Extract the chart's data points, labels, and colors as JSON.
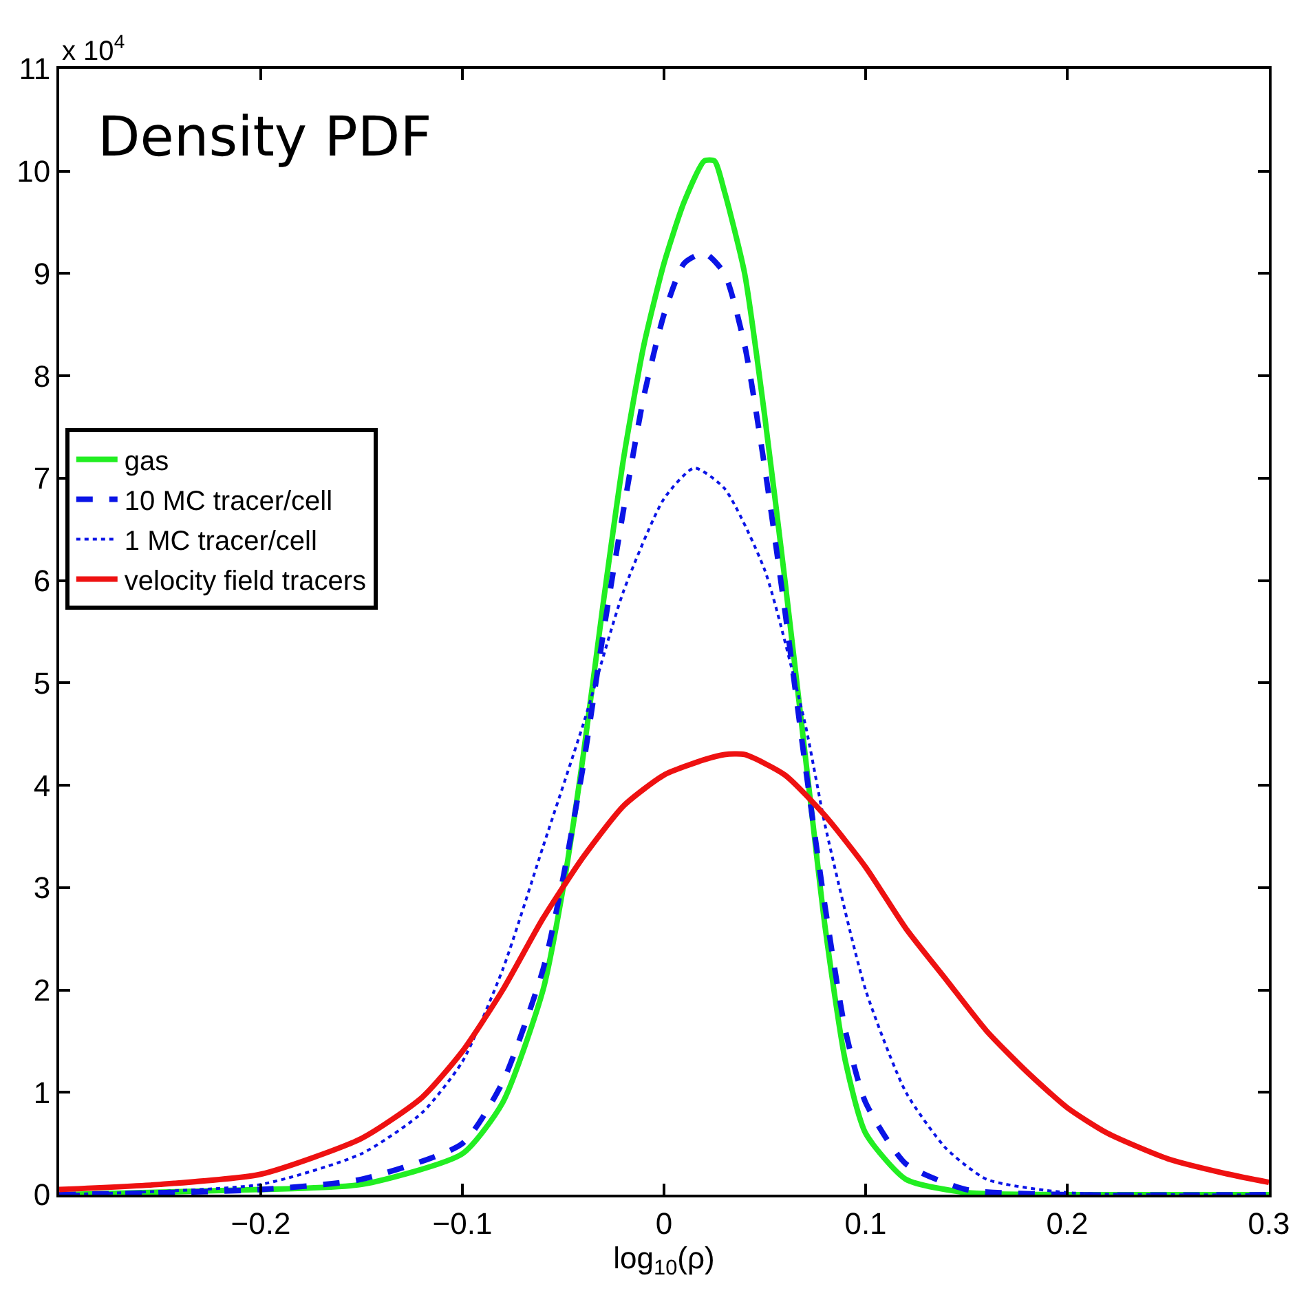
{
  "chart_data": {
    "type": "line",
    "title": "Density PDF",
    "xlabel": "log$_{10}$(ρ)",
    "annotations": [
      "x 10$^{4}$"
    ],
    "xlim": [
      -0.3,
      0.3
    ],
    "xticks": [
      {
        "value": -0.2,
        "label": "−0.2"
      },
      {
        "value": -0.1,
        "label": "−0.1"
      },
      0,
      0.1,
      0.2,
      0.3
    ],
    "ylim": [
      0,
      11
    ],
    "yticks": [
      0,
      1,
      2,
      3,
      4,
      5,
      6,
      7,
      8,
      9,
      10,
      11
    ],
    "legend": "left",
    "marker": "none",
    "series": [
      {
        "name": "gas",
        "color": "#22ee22",
        "line_style": "solid",
        "x": [
          -0.3,
          -0.2,
          -0.15,
          -0.1,
          -0.08,
          -0.06,
          -0.05,
          -0.04,
          -0.03,
          -0.02,
          -0.01,
          0,
          0.01,
          0.02,
          0.025,
          0.03,
          0.04,
          0.05,
          0.06,
          0.07,
          0.08,
          0.09,
          0.1,
          0.12,
          0.15,
          0.2,
          0.3
        ],
        "values": [
          0,
          0.05,
          0.1,
          0.4,
          0.9,
          2.0,
          3.0,
          4.3,
          5.8,
          7.2,
          8.3,
          9.1,
          9.7,
          10.1,
          10.1,
          9.8,
          9.0,
          7.6,
          6.0,
          4.3,
          2.6,
          1.3,
          0.6,
          0.15,
          0.02,
          0,
          0
        ]
      },
      {
        "name": "10 MC tracer/cell",
        "color": "#0a14e6",
        "line_style": "dashed",
        "x": [
          -0.3,
          -0.2,
          -0.15,
          -0.1,
          -0.08,
          -0.06,
          -0.05,
          -0.04,
          -0.03,
          -0.02,
          -0.01,
          0,
          0.01,
          0.02,
          0.03,
          0.04,
          0.05,
          0.06,
          0.07,
          0.08,
          0.09,
          0.1,
          0.12,
          0.15,
          0.2,
          0.3
        ],
        "values": [
          0,
          0.05,
          0.15,
          0.5,
          1.1,
          2.2,
          3.1,
          4.2,
          5.5,
          6.7,
          7.8,
          8.6,
          9.1,
          9.2,
          9.0,
          8.3,
          7.1,
          5.7,
          4.2,
          2.8,
          1.6,
          0.9,
          0.3,
          0.05,
          0,
          0
        ]
      },
      {
        "name": "1 MC tracer/cell",
        "color": "#0a14e6",
        "line_style": "dotted",
        "x": [
          -0.3,
          -0.2,
          -0.15,
          -0.12,
          -0.1,
          -0.08,
          -0.06,
          -0.04,
          -0.02,
          0,
          0.015,
          0.03,
          0.05,
          0.07,
          0.08,
          0.1,
          0.12,
          0.14,
          0.16,
          0.2,
          0.3
        ],
        "values": [
          0,
          0.1,
          0.4,
          0.8,
          1.3,
          2.2,
          3.4,
          4.6,
          5.9,
          6.8,
          7.1,
          6.9,
          6.1,
          4.6,
          3.6,
          2.0,
          1.0,
          0.45,
          0.15,
          0.02,
          0
        ]
      },
      {
        "name": "velocity field tracers",
        "color": "#ee1111",
        "line_style": "solid",
        "x": [
          -0.3,
          -0.25,
          -0.2,
          -0.15,
          -0.12,
          -0.1,
          -0.08,
          -0.06,
          -0.04,
          -0.02,
          0,
          0.02,
          0.03,
          0.04,
          0.06,
          0.08,
          0.1,
          0.12,
          0.14,
          0.16,
          0.18,
          0.2,
          0.22,
          0.25,
          0.28,
          0.3
        ],
        "values": [
          0.05,
          0.1,
          0.2,
          0.55,
          0.95,
          1.4,
          2.0,
          2.7,
          3.3,
          3.8,
          4.1,
          4.25,
          4.3,
          4.3,
          4.1,
          3.7,
          3.2,
          2.6,
          2.1,
          1.6,
          1.2,
          0.85,
          0.6,
          0.35,
          0.2,
          0.12
        ]
      }
    ]
  }
}
